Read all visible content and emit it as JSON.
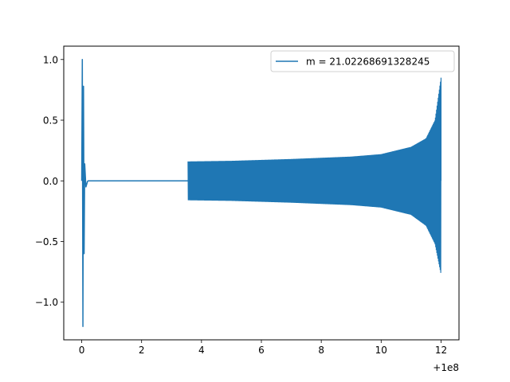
{
  "chart_data": {
    "type": "line",
    "title": "",
    "xlabel": "",
    "ylabel": "",
    "xlim": [
      -0.6,
      12.6
    ],
    "ylim": [
      -1.31,
      1.11
    ],
    "x_offset_label": "+1e8",
    "x_ticks": [
      0,
      2,
      4,
      6,
      8,
      10,
      12
    ],
    "x_tick_labels": [
      "0",
      "2",
      "4",
      "6",
      "8",
      "10",
      "12"
    ],
    "y_ticks": [
      -1.0,
      -0.5,
      0.0,
      0.5,
      1.0
    ],
    "y_tick_labels": [
      "−1.0",
      "−0.5",
      "0.0",
      "0.5",
      "1.0"
    ],
    "grid": false,
    "legend_position": "top-right",
    "series": [
      {
        "name": "m = 21.02268691328245",
        "color": "#1f77b4",
        "segments": [
          {
            "kind": "spike",
            "x": [
              0.0,
              0.02,
              0.04,
              0.06,
              0.08,
              0.1,
              0.14,
              0.2
            ],
            "y": [
              0.0,
              1.0,
              -1.2,
              0.78,
              -0.6,
              0.14,
              -0.05,
              0.0
            ]
          },
          {
            "kind": "flat",
            "x": [
              0.2,
              3.55
            ],
            "y": [
              0.0,
              0.0
            ]
          },
          {
            "kind": "oscillation",
            "x_start": 3.55,
            "x_end": 12.0,
            "amplitude_start": 0.16,
            "amplitude_end": 0.85,
            "envelope_upper": [
              [
                3.55,
                0.16
              ],
              [
                5,
                0.165
              ],
              [
                7,
                0.18
              ],
              [
                9,
                0.2
              ],
              [
                10,
                0.22
              ],
              [
                11,
                0.28
              ],
              [
                11.5,
                0.35
              ],
              [
                11.8,
                0.5
              ],
              [
                12.0,
                0.85
              ]
            ],
            "envelope_lower": [
              [
                3.55,
                -0.16
              ],
              [
                5,
                -0.165
              ],
              [
                7,
                -0.18
              ],
              [
                9,
                -0.2
              ],
              [
                10,
                -0.22
              ],
              [
                11,
                -0.28
              ],
              [
                11.5,
                -0.37
              ],
              [
                11.8,
                -0.52
              ],
              [
                12.0,
                -0.77
              ]
            ]
          }
        ]
      }
    ]
  }
}
